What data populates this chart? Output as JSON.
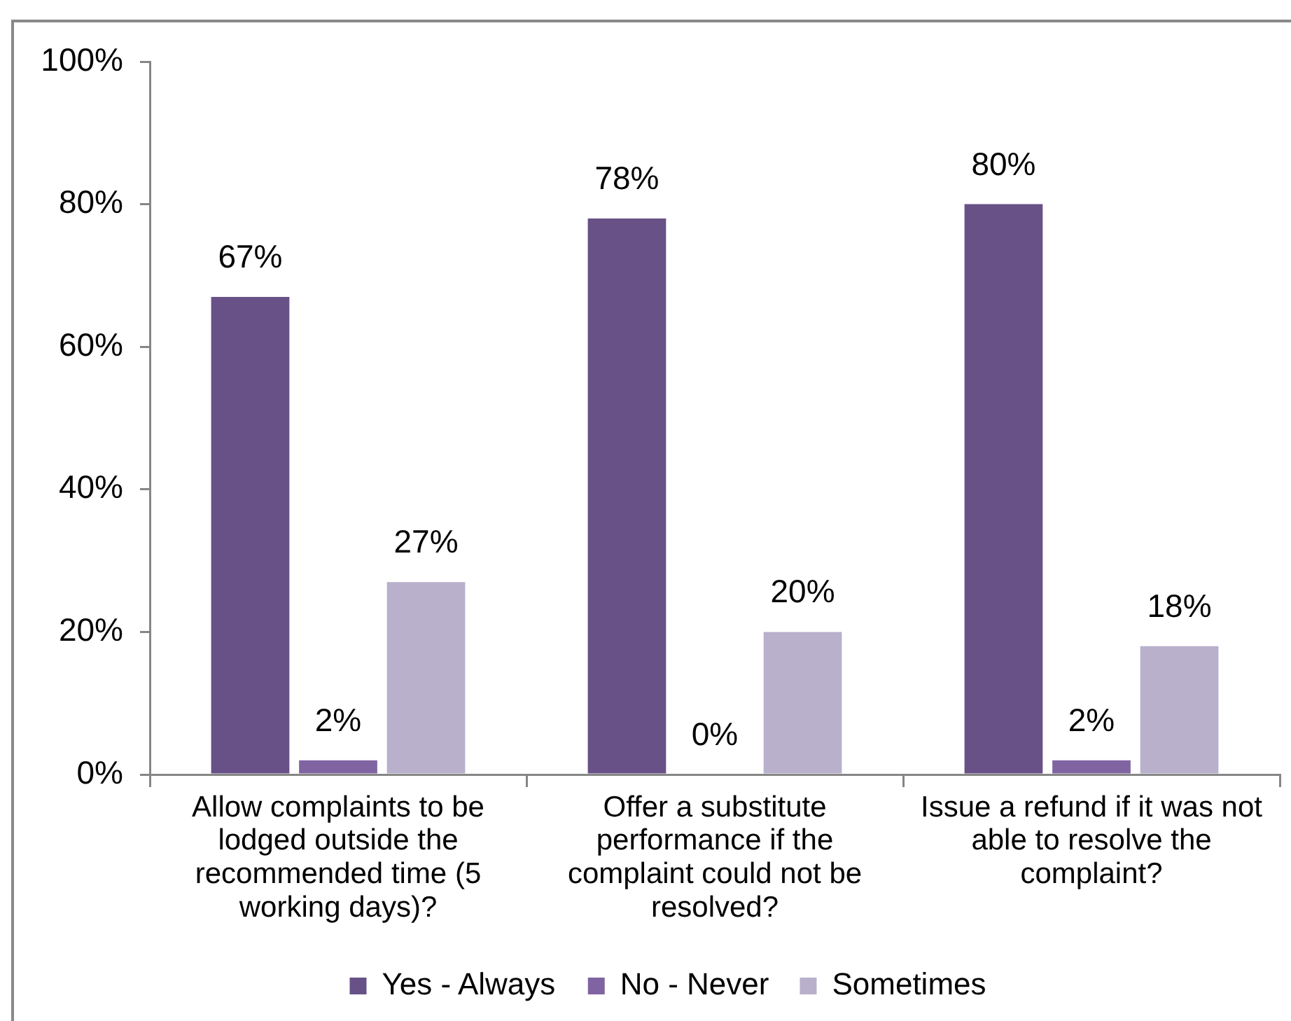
{
  "chart_data": {
    "type": "bar",
    "categories": [
      "Allow complaints to be lodged outside the recommended time (5 working days)?",
      "Offer a substitute performance if the complaint could not be resolved?",
      "Issue a refund if it was not able to resolve the complaint?"
    ],
    "series": [
      {
        "name": "Yes - Always",
        "color": "#685187",
        "values": [
          67,
          78,
          80
        ],
        "value_labels": [
          "67%",
          "78%",
          "80%"
        ]
      },
      {
        "name": "No - Never",
        "color": "#8064a2",
        "values": [
          2,
          0,
          2
        ],
        "value_labels": [
          "2%",
          "0%",
          "2%"
        ]
      },
      {
        "name": "Sometimes",
        "color": "#b9b0cc",
        "values": [
          27,
          20,
          18
        ],
        "value_labels": [
          "27%",
          "20%",
          "18%"
        ]
      }
    ],
    "ylim": [
      0,
      100
    ],
    "yticks": [
      {
        "value": 0,
        "label": "0%"
      },
      {
        "value": 20,
        "label": "20%"
      },
      {
        "value": 40,
        "label": "40%"
      },
      {
        "value": 60,
        "label": "60%"
      },
      {
        "value": 80,
        "label": "80%"
      },
      {
        "value": 100,
        "label": "100%"
      }
    ],
    "legend": "bottom"
  }
}
